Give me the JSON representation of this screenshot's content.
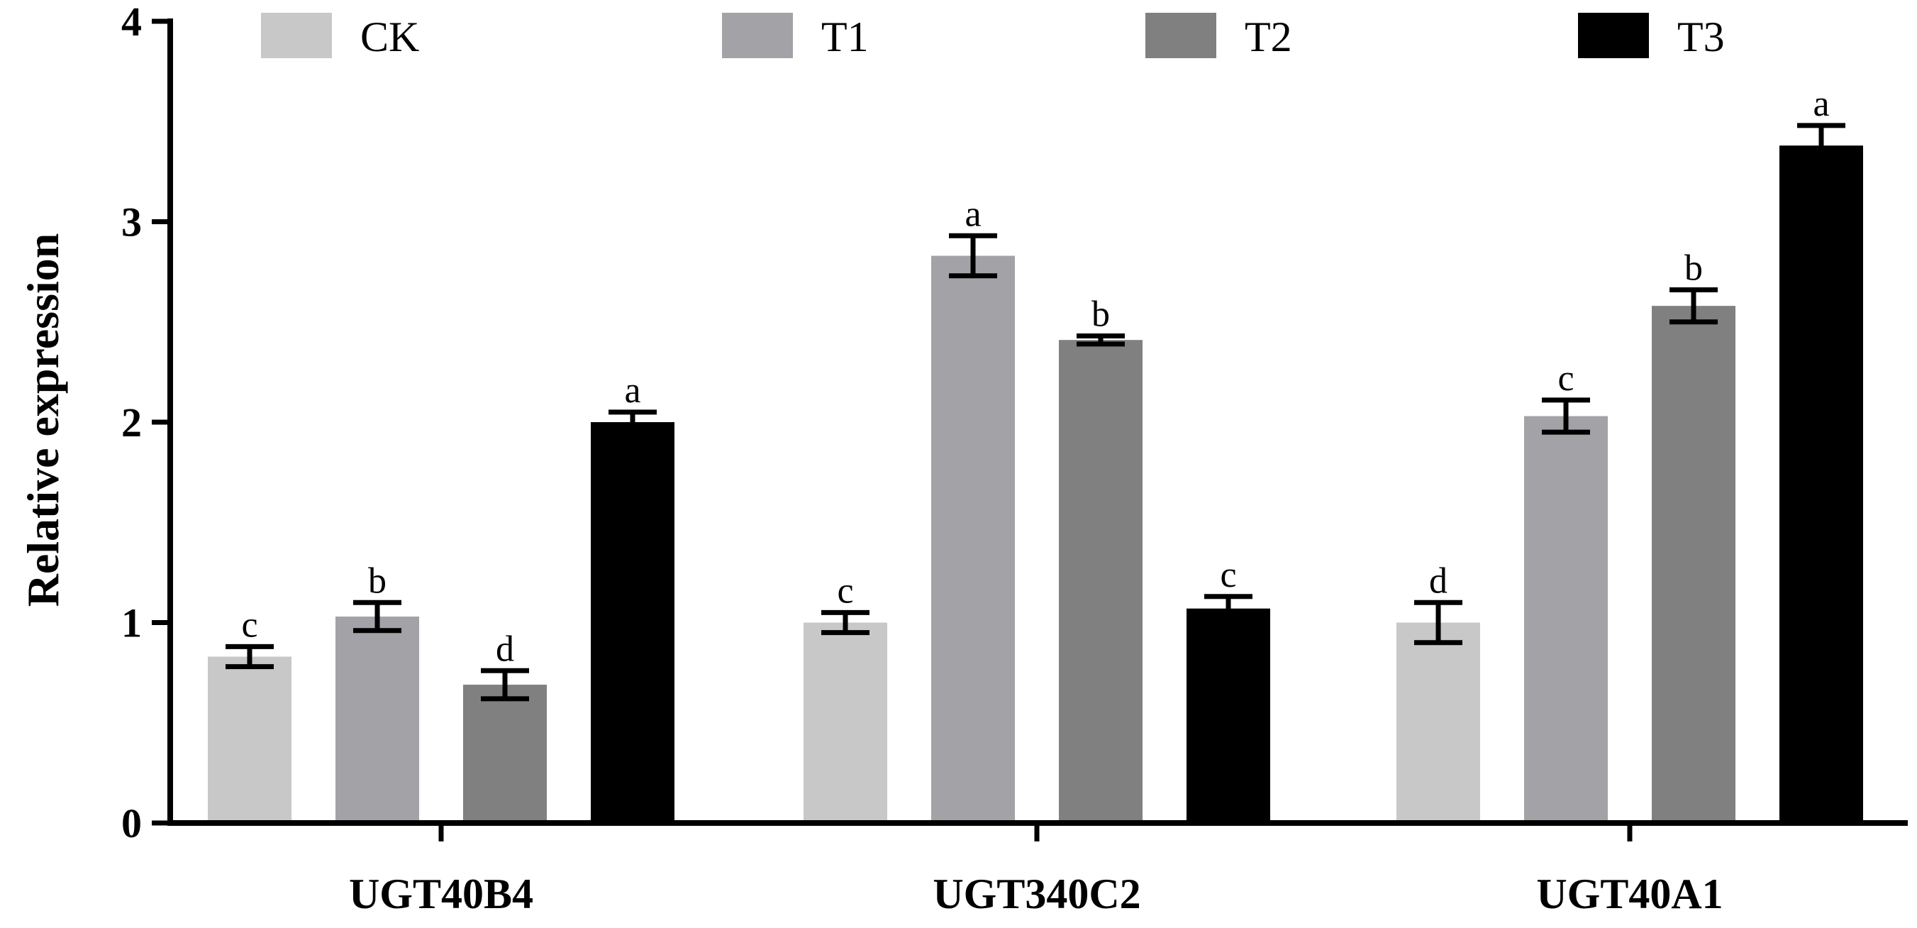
{
  "chart_data": {
    "type": "bar",
    "title": "",
    "xlabel": "",
    "ylabel": "Relative expression",
    "ylim": [
      0,
      4
    ],
    "yticks": [
      "0",
      "1",
      "2",
      "3",
      "4"
    ],
    "categories": [
      "UGT40B4",
      "UGT340C2",
      "UGT40A1"
    ],
    "legend_position": "top",
    "series": [
      {
        "name": "CK",
        "color": "#c8c8c8",
        "values": [
          0.83,
          1.0,
          1.0
        ],
        "errors": [
          0.05,
          0.05,
          0.1
        ],
        "labels": [
          "c",
          "c",
          "d"
        ]
      },
      {
        "name": "T1",
        "color": "#a3a2a6",
        "values": [
          1.03,
          2.83,
          2.03
        ],
        "errors": [
          0.07,
          0.1,
          0.08
        ],
        "labels": [
          "b",
          "a",
          "c"
        ]
      },
      {
        "name": "T2",
        "color": "#808080",
        "values": [
          0.69,
          2.41,
          2.58
        ],
        "errors": [
          0.07,
          0.02,
          0.08
        ],
        "labels": [
          "d",
          "b",
          "b"
        ]
      },
      {
        "name": "T3",
        "color": "#000000",
        "values": [
          2.0,
          1.07,
          3.38
        ],
        "errors": [
          0.05,
          0.06,
          0.1
        ],
        "labels": [
          "a",
          "c",
          "a"
        ]
      }
    ]
  }
}
